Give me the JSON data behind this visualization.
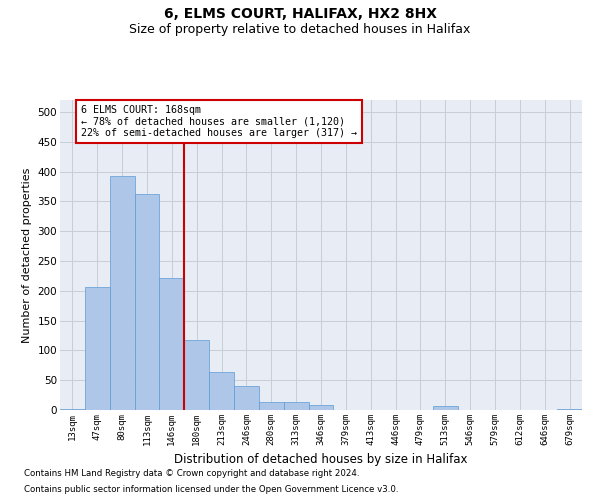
{
  "title1": "6, ELMS COURT, HALIFAX, HX2 8HX",
  "title2": "Size of property relative to detached houses in Halifax",
  "xlabel": "Distribution of detached houses by size in Halifax",
  "ylabel": "Number of detached properties",
  "footnote1": "Contains HM Land Registry data © Crown copyright and database right 2024.",
  "footnote2": "Contains public sector information licensed under the Open Government Licence v3.0.",
  "categories": [
    "13sqm",
    "47sqm",
    "80sqm",
    "113sqm",
    "146sqm",
    "180sqm",
    "213sqm",
    "246sqm",
    "280sqm",
    "313sqm",
    "346sqm",
    "379sqm",
    "413sqm",
    "446sqm",
    "479sqm",
    "513sqm",
    "546sqm",
    "579sqm",
    "612sqm",
    "646sqm",
    "679sqm"
  ],
  "values": [
    2,
    207,
    393,
    362,
    221,
    117,
    63,
    40,
    14,
    14,
    8,
    0,
    0,
    0,
    0,
    7,
    0,
    0,
    0,
    0,
    2
  ],
  "bar_color": "#aec6e8",
  "bar_edge_color": "#5b9bd5",
  "annotation_line1": "6 ELMS COURT: 168sqm",
  "annotation_line2": "← 78% of detached houses are smaller (1,120)",
  "annotation_line3": "22% of semi-detached houses are larger (317) →",
  "annotation_box_color": "#ffffff",
  "annotation_box_edge": "#cc0000",
  "vline_x": 4.5,
  "vline_color": "#cc0000",
  "grid_color": "#c8cdd6",
  "ylim": [
    0,
    520
  ],
  "yticks": [
    0,
    50,
    100,
    150,
    200,
    250,
    300,
    350,
    400,
    450,
    500
  ],
  "bg_color": "#e8edf5",
  "title1_fontsize": 10,
  "title2_fontsize": 9
}
